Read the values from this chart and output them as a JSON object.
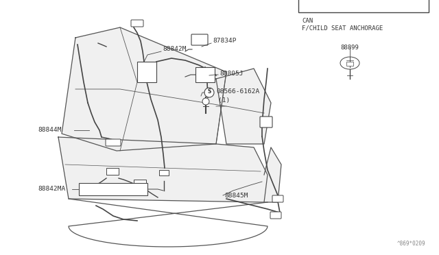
{
  "bg_color": "#ffffff",
  "line_color": "#444444",
  "text_color": "#333333",
  "watermark": "^869*0209",
  "box_label_line1": "CAN",
  "box_label_line2": "F/CHILD SEAT ANCHORAGE",
  "part_88842M": "88842M",
  "part_87834P": "87834P",
  "part_88805J": "88805J",
  "part_08566": "08566-6162A",
  "part_1": "(1)",
  "part_88844M": "88844M",
  "part_88842MA": "88842MA",
  "part_88845M": "88845M",
  "part_88899": "88899",
  "seat_fill": "#f0f0f0",
  "seat_stroke": "#555555",
  "figw": 6.4,
  "figh": 3.72,
  "dpi": 100
}
